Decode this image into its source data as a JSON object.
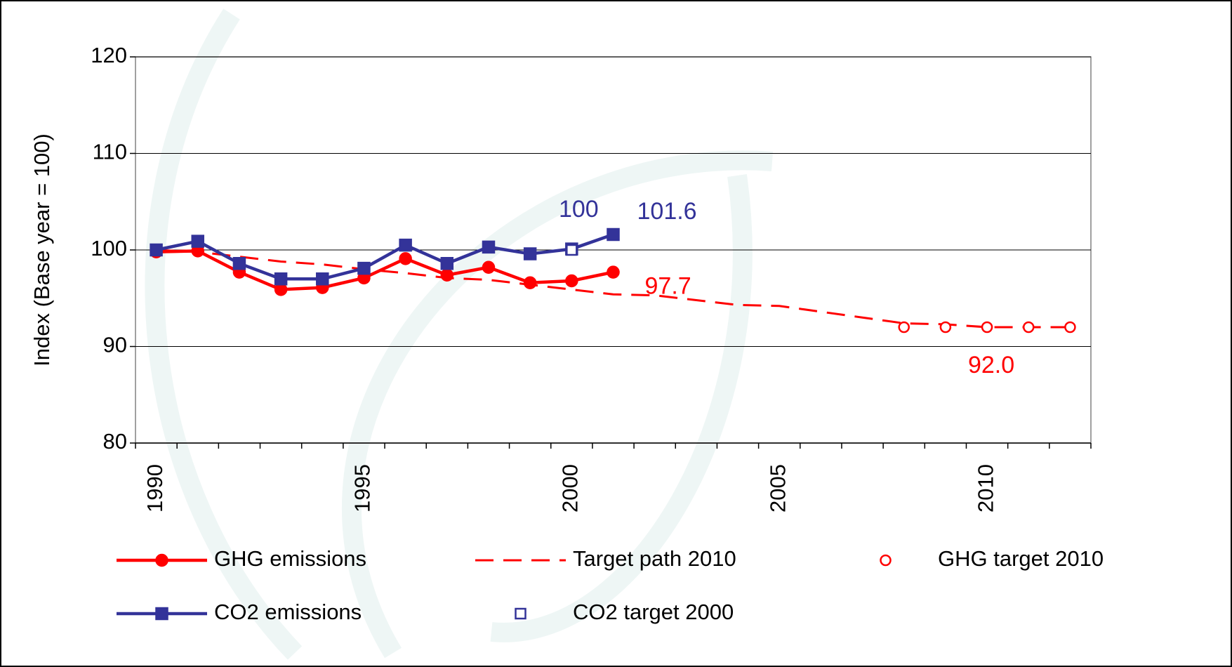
{
  "chart_data": {
    "type": "line",
    "y_label": "Index (Base year = 100)",
    "categories": [
      "1990",
      null,
      null,
      null,
      null,
      "1995",
      null,
      null,
      null,
      null,
      "2000",
      null,
      null,
      null,
      null,
      "2005",
      null,
      null,
      null,
      null,
      "2010",
      null,
      null
    ],
    "ylim": [
      80,
      120
    ],
    "yticks": [
      80,
      90,
      100,
      110,
      120
    ],
    "grid": true,
    "series": [
      {
        "name": "GHG emissions",
        "color": "#ff0000",
        "line": "solid",
        "marker": "circle",
        "marker_fill": "filled",
        "values": [
          99.8,
          99.9,
          97.7,
          95.9,
          96.1,
          97.1,
          99.1,
          97.4,
          98.2,
          96.6,
          96.8,
          97.7,
          null,
          null,
          null,
          null,
          null,
          null,
          null,
          null,
          null,
          null,
          null
        ],
        "value_labels": [
          null,
          null,
          null,
          null,
          null,
          null,
          null,
          null,
          null,
          null,
          null,
          "97.7",
          null,
          null,
          null,
          null,
          null,
          null,
          null,
          null,
          null,
          null,
          null
        ]
      },
      {
        "name": "Target path 2010",
        "color": "#ff0000",
        "line": "dashed",
        "marker": "none",
        "marker_fill": "none",
        "values": [
          100,
          99.8,
          99.3,
          98.8,
          98.5,
          98.0,
          97.6,
          97.1,
          96.9,
          96.4,
          95.9,
          95.4,
          95.3,
          94.8,
          94.3,
          94.2,
          93.6,
          93.0,
          92.4,
          92.3,
          92.0,
          92.0,
          92.0
        ]
      },
      {
        "name": "GHG target 2010",
        "color": "#ff0000",
        "line": "none",
        "marker": "circle",
        "marker_fill": "open",
        "values": [
          null,
          null,
          null,
          null,
          null,
          null,
          null,
          null,
          null,
          null,
          null,
          null,
          null,
          null,
          null,
          null,
          null,
          null,
          92.0,
          92.0,
          92.0,
          92.0,
          92.0
        ],
        "value_labels": [
          null,
          null,
          null,
          null,
          null,
          null,
          null,
          null,
          null,
          null,
          null,
          null,
          null,
          null,
          null,
          null,
          null,
          null,
          null,
          null,
          "92.0",
          null,
          null
        ]
      },
      {
        "name": "CO2 emissions",
        "color": "#333399",
        "line": "solid",
        "marker": "square",
        "marker_fill": "filled",
        "values": [
          100.0,
          100.9,
          98.6,
          97.0,
          97.0,
          98.1,
          100.5,
          98.6,
          100.3,
          99.6,
          100.1,
          101.6,
          null,
          null,
          null,
          null,
          null,
          null,
          null,
          null,
          null,
          null,
          null
        ],
        "value_labels": [
          null,
          null,
          null,
          null,
          null,
          null,
          null,
          null,
          null,
          null,
          null,
          "101.6",
          null,
          null,
          null,
          null,
          null,
          null,
          null,
          null,
          null,
          null,
          null
        ]
      },
      {
        "name": "CO2 target 2000",
        "color": "#333399",
        "line": "none",
        "marker": "square",
        "marker_fill": "open",
        "values": [
          null,
          null,
          null,
          null,
          null,
          null,
          null,
          null,
          null,
          null,
          100,
          null,
          null,
          null,
          null,
          null,
          null,
          null,
          null,
          null,
          null,
          null,
          null
        ],
        "value_labels": [
          null,
          null,
          null,
          null,
          null,
          null,
          null,
          null,
          null,
          null,
          "100",
          null,
          null,
          null,
          null,
          null,
          null,
          null,
          null,
          null,
          null,
          null,
          null
        ]
      }
    ]
  }
}
